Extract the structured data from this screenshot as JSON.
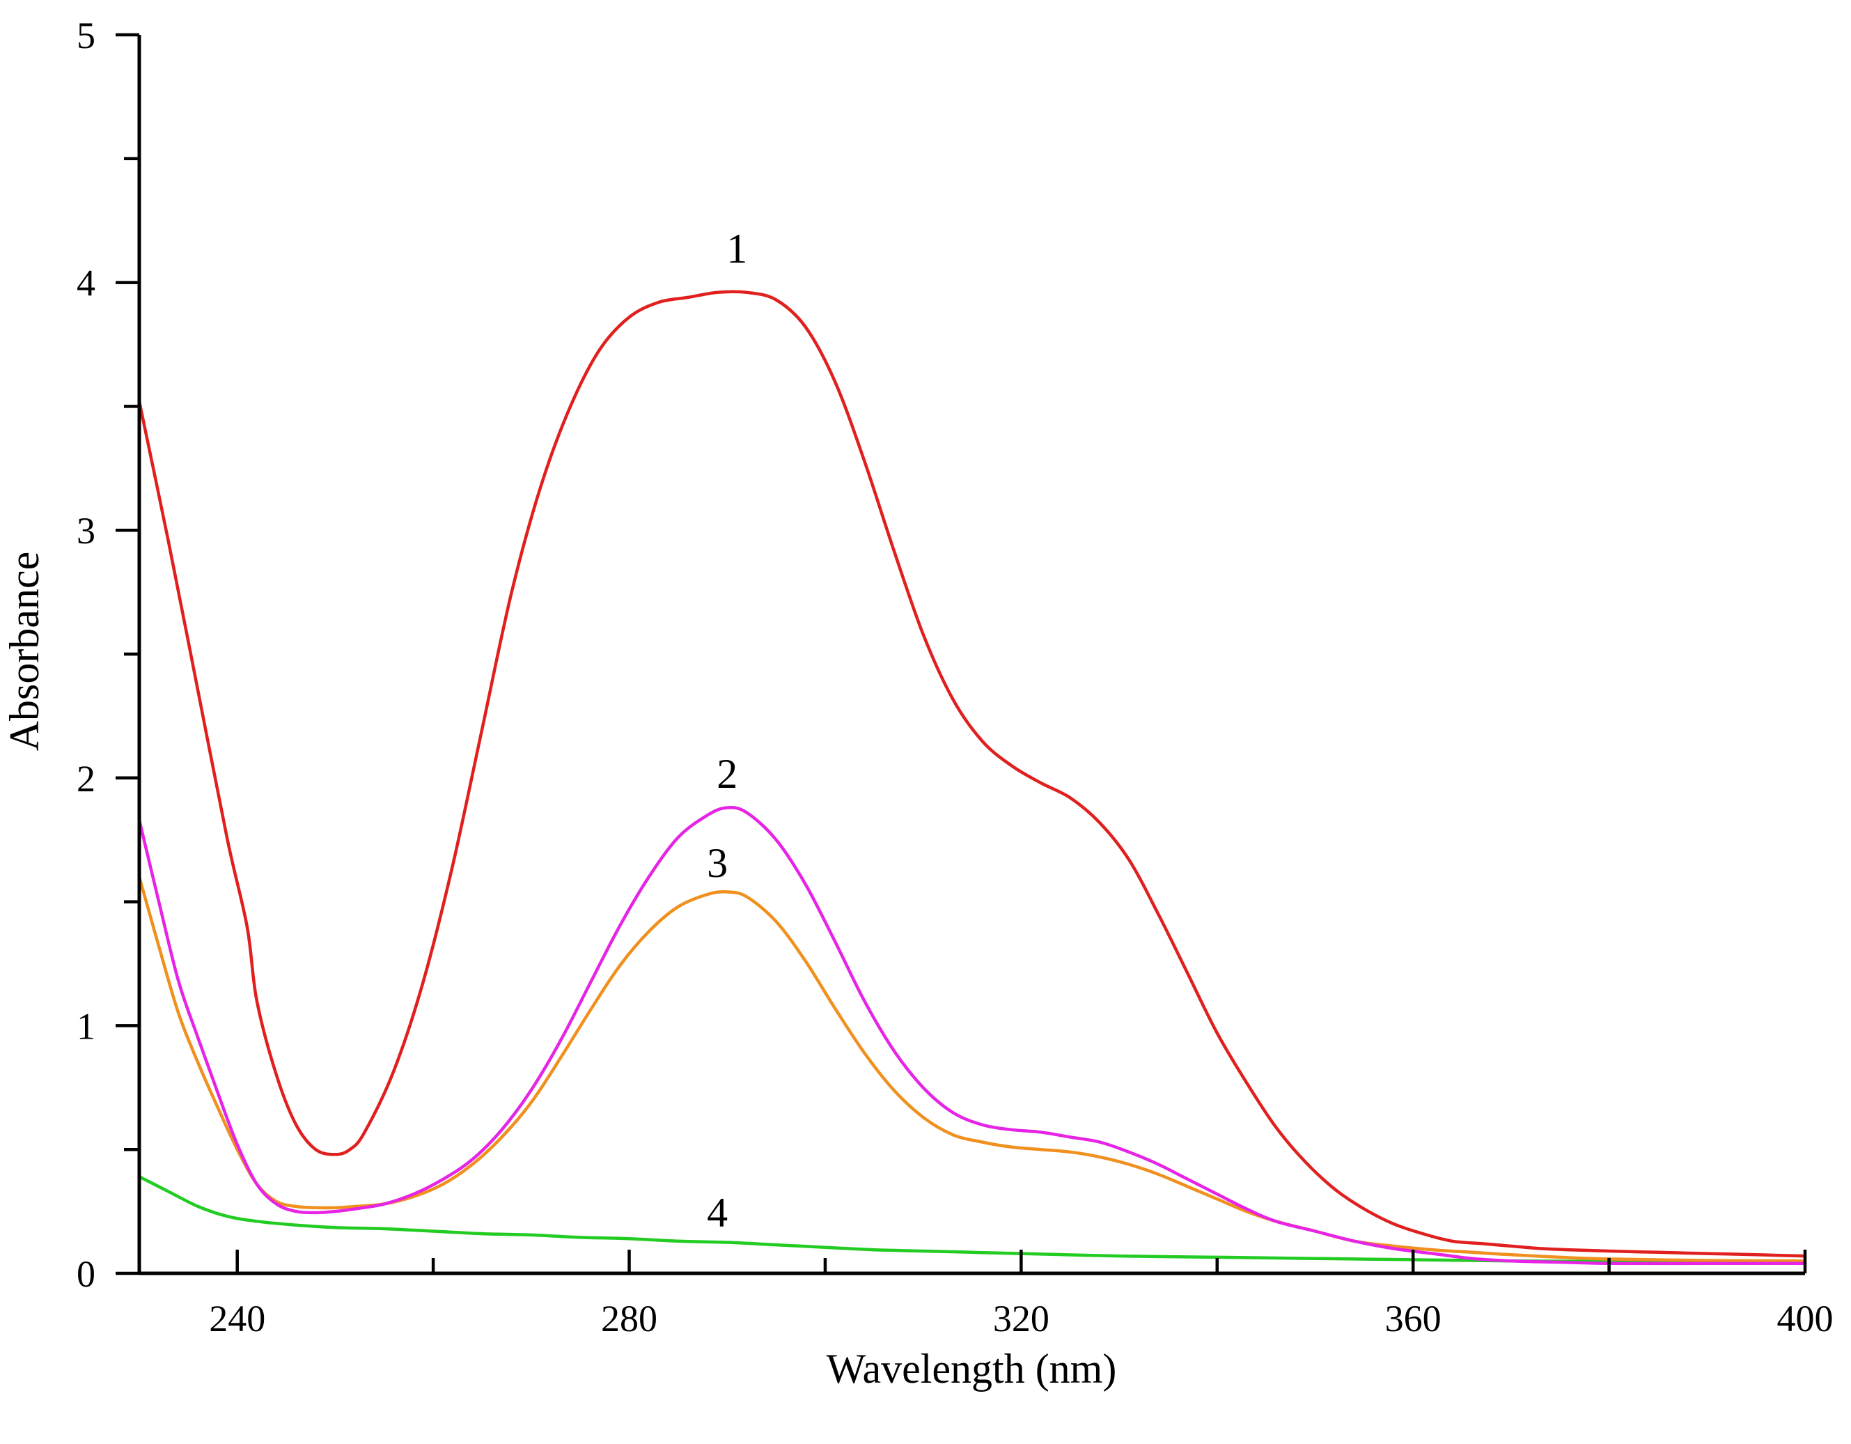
{
  "chart_data": {
    "type": "line",
    "title": "",
    "xlabel": "Wavelength (nm)",
    "ylabel": "Absorbance",
    "xlim": [
      230,
      400
    ],
    "ylim": [
      0,
      5
    ],
    "x_ticks": [
      240,
      280,
      320,
      360,
      400
    ],
    "x_minor_ticks": [
      260,
      300,
      340,
      380
    ],
    "y_ticks": [
      0,
      1,
      2,
      3,
      4,
      5
    ],
    "y_minor_ticks": [
      0.5,
      1.5,
      2.5,
      3.5,
      4.5
    ],
    "grid": false,
    "series": [
      {
        "name": "1",
        "color": "#e0201e",
        "label_at": [
          291,
          4.08
        ],
        "points": [
          [
            230,
            3.52
          ],
          [
            233,
            2.95
          ],
          [
            236,
            2.35
          ],
          [
            239,
            1.75
          ],
          [
            241,
            1.4
          ],
          [
            242,
            1.1
          ],
          [
            244,
            0.8
          ],
          [
            246,
            0.6
          ],
          [
            248,
            0.5
          ],
          [
            250,
            0.48
          ],
          [
            251.5,
            0.5
          ],
          [
            253,
            0.57
          ],
          [
            256,
            0.82
          ],
          [
            259,
            1.18
          ],
          [
            262,
            1.65
          ],
          [
            265,
            2.2
          ],
          [
            268,
            2.75
          ],
          [
            271,
            3.18
          ],
          [
            274,
            3.5
          ],
          [
            277,
            3.73
          ],
          [
            280,
            3.86
          ],
          [
            283,
            3.92
          ],
          [
            286,
            3.94
          ],
          [
            289,
            3.96
          ],
          [
            292,
            3.96
          ],
          [
            295,
            3.93
          ],
          [
            298,
            3.82
          ],
          [
            301,
            3.6
          ],
          [
            304,
            3.28
          ],
          [
            307,
            2.92
          ],
          [
            310,
            2.58
          ],
          [
            313,
            2.32
          ],
          [
            316,
            2.15
          ],
          [
            319,
            2.05
          ],
          [
            322,
            1.98
          ],
          [
            325,
            1.92
          ],
          [
            328,
            1.82
          ],
          [
            331,
            1.67
          ],
          [
            334,
            1.45
          ],
          [
            337,
            1.21
          ],
          [
            340,
            0.97
          ],
          [
            343,
            0.77
          ],
          [
            346,
            0.59
          ],
          [
            349,
            0.45
          ],
          [
            352,
            0.34
          ],
          [
            355,
            0.26
          ],
          [
            358,
            0.2
          ],
          [
            361,
            0.16
          ],
          [
            364,
            0.13
          ],
          [
            367,
            0.12
          ],
          [
            370,
            0.11
          ],
          [
            373,
            0.1
          ],
          [
            376,
            0.095
          ],
          [
            380,
            0.09
          ],
          [
            385,
            0.085
          ],
          [
            390,
            0.08
          ],
          [
            395,
            0.075
          ],
          [
            400,
            0.07
          ]
        ]
      },
      {
        "name": "2",
        "color": "#e624e6",
        "label_at": [
          290,
          1.96
        ],
        "points": [
          [
            230,
            1.83
          ],
          [
            232,
            1.5
          ],
          [
            234,
            1.18
          ],
          [
            236,
            0.95
          ],
          [
            238,
            0.73
          ],
          [
            240,
            0.52
          ],
          [
            242,
            0.36
          ],
          [
            244,
            0.28
          ],
          [
            246,
            0.25
          ],
          [
            248,
            0.245
          ],
          [
            250,
            0.25
          ],
          [
            252,
            0.26
          ],
          [
            255,
            0.28
          ],
          [
            258,
            0.32
          ],
          [
            261,
            0.38
          ],
          [
            264,
            0.46
          ],
          [
            267,
            0.58
          ],
          [
            270,
            0.74
          ],
          [
            273,
            0.94
          ],
          [
            276,
            1.17
          ],
          [
            279,
            1.4
          ],
          [
            282,
            1.6
          ],
          [
            285,
            1.76
          ],
          [
            288,
            1.85
          ],
          [
            290,
            1.88
          ],
          [
            292,
            1.86
          ],
          [
            295,
            1.75
          ],
          [
            298,
            1.57
          ],
          [
            301,
            1.34
          ],
          [
            304,
            1.1
          ],
          [
            307,
            0.9
          ],
          [
            310,
            0.75
          ],
          [
            313,
            0.65
          ],
          [
            316,
            0.6
          ],
          [
            319,
            0.58
          ],
          [
            322,
            0.57
          ],
          [
            325,
            0.55
          ],
          [
            328,
            0.53
          ],
          [
            331,
            0.49
          ],
          [
            334,
            0.44
          ],
          [
            337,
            0.38
          ],
          [
            340,
            0.32
          ],
          [
            343,
            0.26
          ],
          [
            346,
            0.21
          ],
          [
            350,
            0.17
          ],
          [
            354,
            0.13
          ],
          [
            358,
            0.1
          ],
          [
            362,
            0.08
          ],
          [
            366,
            0.06
          ],
          [
            370,
            0.05
          ],
          [
            375,
            0.045
          ],
          [
            380,
            0.04
          ],
          [
            390,
            0.04
          ],
          [
            400,
            0.04
          ]
        ]
      },
      {
        "name": "3",
        "color": "#f0901e",
        "label_at": [
          289,
          1.6
        ],
        "points": [
          [
            230,
            1.6
          ],
          [
            232,
            1.32
          ],
          [
            234,
            1.05
          ],
          [
            236,
            0.85
          ],
          [
            238,
            0.67
          ],
          [
            240,
            0.5
          ],
          [
            242,
            0.36
          ],
          [
            244,
            0.29
          ],
          [
            246,
            0.27
          ],
          [
            248,
            0.265
          ],
          [
            250,
            0.265
          ],
          [
            252,
            0.27
          ],
          [
            255,
            0.28
          ],
          [
            258,
            0.31
          ],
          [
            261,
            0.36
          ],
          [
            264,
            0.44
          ],
          [
            267,
            0.55
          ],
          [
            270,
            0.69
          ],
          [
            273,
            0.87
          ],
          [
            276,
            1.06
          ],
          [
            279,
            1.24
          ],
          [
            282,
            1.38
          ],
          [
            285,
            1.48
          ],
          [
            288,
            1.53
          ],
          [
            290,
            1.54
          ],
          [
            292,
            1.52
          ],
          [
            295,
            1.42
          ],
          [
            298,
            1.26
          ],
          [
            301,
            1.07
          ],
          [
            304,
            0.89
          ],
          [
            307,
            0.74
          ],
          [
            310,
            0.63
          ],
          [
            313,
            0.56
          ],
          [
            316,
            0.53
          ],
          [
            319,
            0.51
          ],
          [
            322,
            0.5
          ],
          [
            325,
            0.49
          ],
          [
            328,
            0.47
          ],
          [
            331,
            0.44
          ],
          [
            334,
            0.4
          ],
          [
            337,
            0.35
          ],
          [
            340,
            0.3
          ],
          [
            343,
            0.25
          ],
          [
            346,
            0.21
          ],
          [
            350,
            0.17
          ],
          [
            354,
            0.13
          ],
          [
            358,
            0.11
          ],
          [
            362,
            0.095
          ],
          [
            366,
            0.085
          ],
          [
            370,
            0.075
          ],
          [
            375,
            0.065
          ],
          [
            380,
            0.058
          ],
          [
            390,
            0.052
          ],
          [
            400,
            0.05
          ]
        ]
      },
      {
        "name": "4",
        "color": "#22cc22",
        "label_at": [
          289,
          0.19
        ],
        "points": [
          [
            230,
            0.39
          ],
          [
            233,
            0.33
          ],
          [
            236,
            0.27
          ],
          [
            239,
            0.23
          ],
          [
            242,
            0.21
          ],
          [
            246,
            0.195
          ],
          [
            250,
            0.185
          ],
          [
            255,
            0.18
          ],
          [
            260,
            0.17
          ],
          [
            265,
            0.16
          ],
          [
            270,
            0.155
          ],
          [
            275,
            0.145
          ],
          [
            280,
            0.14
          ],
          [
            285,
            0.13
          ],
          [
            290,
            0.125
          ],
          [
            295,
            0.115
          ],
          [
            300,
            0.105
          ],
          [
            305,
            0.095
          ],
          [
            310,
            0.09
          ],
          [
            315,
            0.085
          ],
          [
            320,
            0.08
          ],
          [
            330,
            0.07
          ],
          [
            340,
            0.065
          ],
          [
            350,
            0.06
          ],
          [
            360,
            0.055
          ],
          [
            370,
            0.05
          ],
          [
            380,
            0.048
          ],
          [
            390,
            0.045
          ],
          [
            400,
            0.045
          ]
        ]
      }
    ]
  }
}
